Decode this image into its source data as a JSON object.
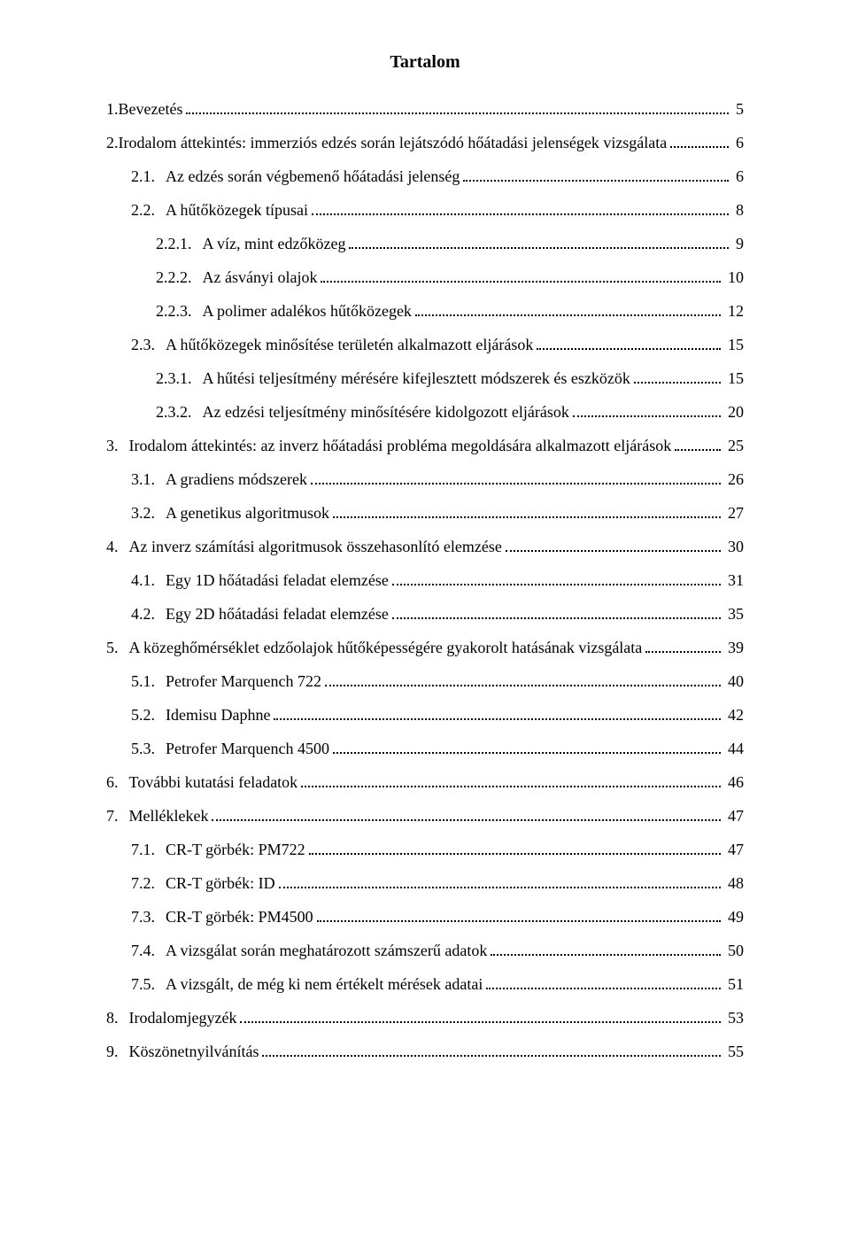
{
  "title": "Tartalom",
  "entries": [
    {
      "indent": 0,
      "num": "1.",
      "textInline": "Bevezetés",
      "page": "5"
    },
    {
      "indent": 0,
      "num": "2.",
      "textInline": "Irodalom áttekintés: immerziós edzés során lejátszódó hőátadási jelenségek vizsgálata",
      "page": "6"
    },
    {
      "indent": 1,
      "num": "2.1.",
      "text": "Az edzés során végbemenő hőátadási jelenség",
      "page": "6"
    },
    {
      "indent": 1,
      "num": "2.2.",
      "text": "A hűtőközegek típusai",
      "page": "8"
    },
    {
      "indent": 2,
      "num": "2.2.1.",
      "text": "A víz, mint edzőközeg",
      "page": "9"
    },
    {
      "indent": 2,
      "num": "2.2.2.",
      "text": "Az ásványi olajok",
      "page": "10"
    },
    {
      "indent": 2,
      "num": "2.2.3.",
      "text": "A polimer adalékos hűtőközegek",
      "page": "12"
    },
    {
      "indent": 1,
      "num": "2.3.",
      "text": "A hűtőközegek minősítése területén alkalmazott eljárások",
      "page": "15"
    },
    {
      "indent": 2,
      "num": "2.3.1.",
      "text": "A hűtési teljesítmény mérésére kifejlesztett módszerek és eszközök",
      "page": "15"
    },
    {
      "indent": 2,
      "num": "2.3.2.",
      "text": "Az edzési teljesítmény minősítésére kidolgozott eljárások",
      "page": "20"
    },
    {
      "indent": 0,
      "num": "3.",
      "text": "Irodalom áttekintés: az inverz hőátadási probléma megoldására alkalmazott eljárások",
      "page": "25"
    },
    {
      "indent": 1,
      "num": "3.1.",
      "text": "A gradiens módszerek",
      "page": "26"
    },
    {
      "indent": 1,
      "num": "3.2.",
      "text": "A genetikus algoritmusok",
      "page": "27"
    },
    {
      "indent": 0,
      "num": "4.",
      "text": "Az inverz számítási algoritmusok összehasonlító elemzése",
      "page": "30"
    },
    {
      "indent": 1,
      "num": "4.1.",
      "text": "Egy 1D hőátadási feladat elemzése",
      "page": "31"
    },
    {
      "indent": 1,
      "num": "4.2.",
      "text": "Egy 2D hőátadási feladat elemzése",
      "page": "35"
    },
    {
      "indent": 0,
      "num": "5.",
      "text": "A közeghőmérséklet edzőolajok hűtőképességére gyakorolt hatásának vizsgálata",
      "page": "39"
    },
    {
      "indent": 1,
      "num": "5.1.",
      "text": "Petrofer Marquench 722",
      "page": "40"
    },
    {
      "indent": 1,
      "num": "5.2.",
      "text": "Idemisu Daphne",
      "page": "42"
    },
    {
      "indent": 1,
      "num": "5.3.",
      "text": "Petrofer Marquench 4500",
      "page": "44"
    },
    {
      "indent": 0,
      "num": "6.",
      "text": "További kutatási feladatok",
      "page": "46"
    },
    {
      "indent": 0,
      "num": "7.",
      "text": "Melléklekek",
      "page": "47"
    },
    {
      "indent": 1,
      "num": "7.1.",
      "text": "CR-T görbék: PM722",
      "page": "47"
    },
    {
      "indent": 1,
      "num": "7.2.",
      "text": "CR-T görbék: ID",
      "page": "48"
    },
    {
      "indent": 1,
      "num": "7.3.",
      "text": "CR-T görbék: PM4500",
      "page": "49"
    },
    {
      "indent": 1,
      "num": "7.4.",
      "text": "A vizsgálat során meghatározott számszerű adatok",
      "page": "50"
    },
    {
      "indent": 1,
      "num": "7.5.",
      "text": "A vizsgált, de még ki nem értékelt mérések adatai",
      "page": "51"
    },
    {
      "indent": 0,
      "num": "8.",
      "text": "Irodalomjegyzék",
      "page": "53"
    },
    {
      "indent": 0,
      "num": "9.",
      "text": "Köszönetnyilvánítás",
      "page": "55"
    }
  ]
}
